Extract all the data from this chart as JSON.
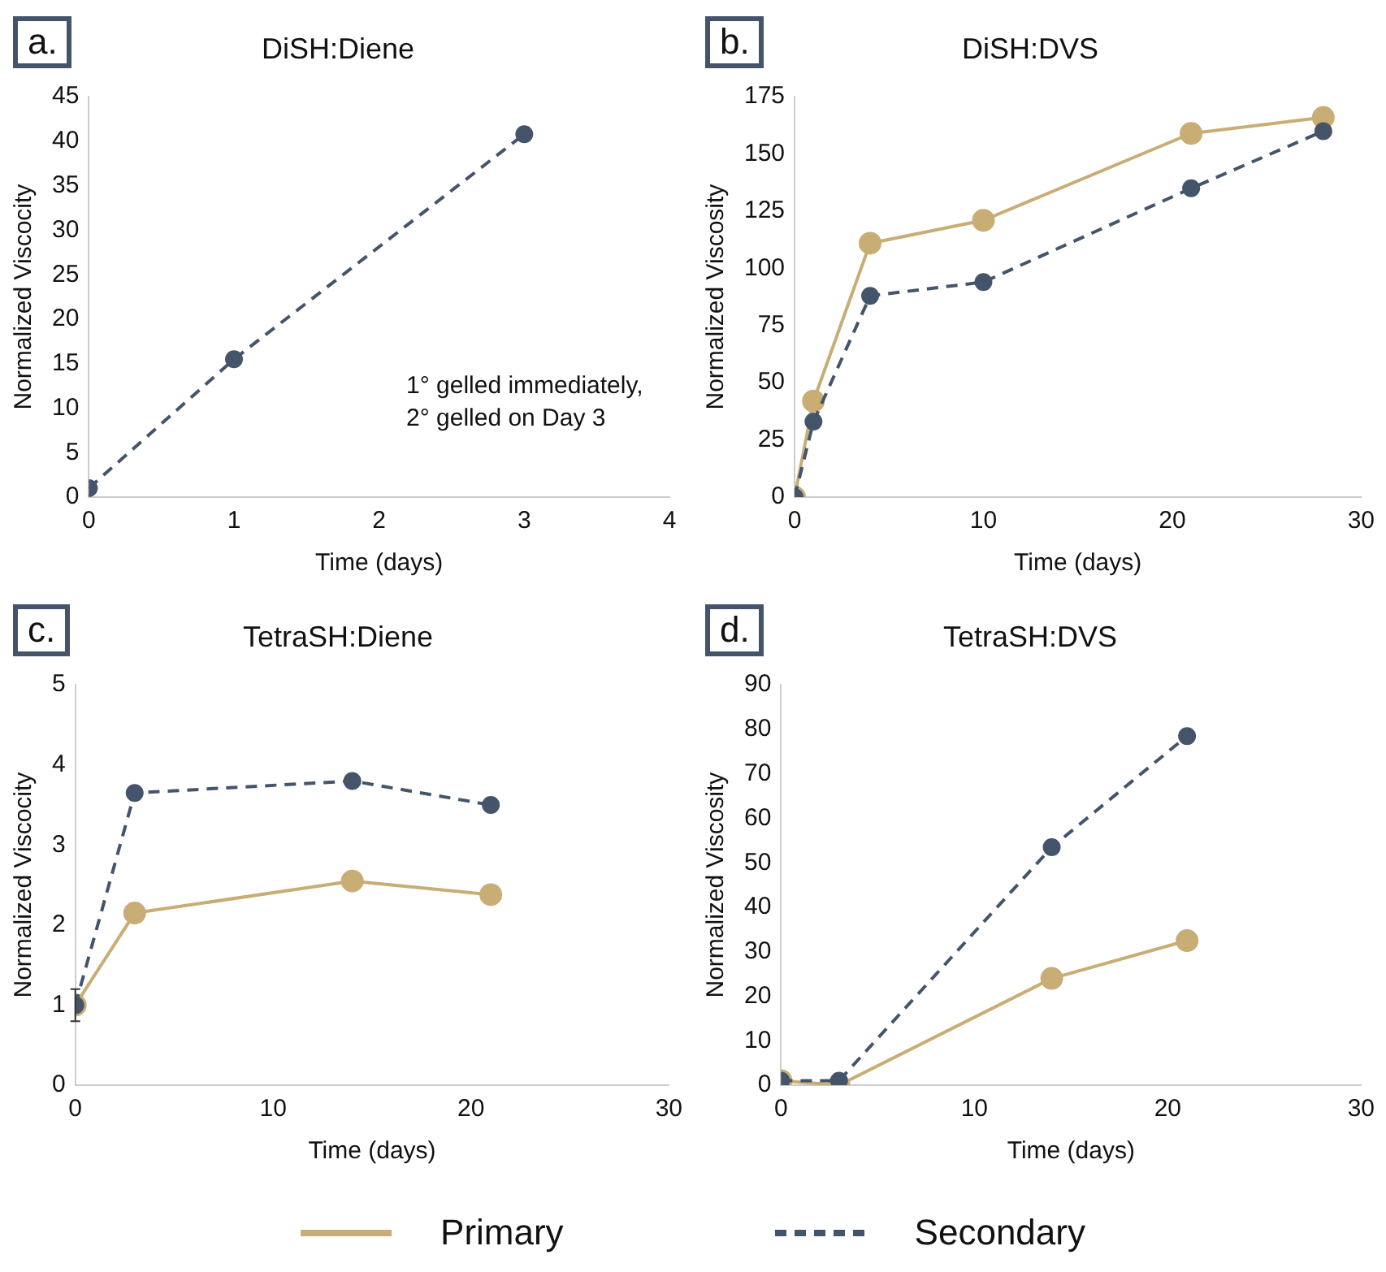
{
  "chart_data": [
    {
      "type": "line",
      "title": "DiSH:Diene",
      "xlabel": "Time (days)",
      "ylabel": "Normalized Viscocity",
      "annotations": [
        "a.",
        "1° gelled immediately,",
        "2° gelled on Day 3"
      ],
      "x": [
        0,
        1,
        3
      ],
      "xlim": [
        0,
        4
      ],
      "xticks": [
        0,
        1,
        2,
        3,
        4
      ],
      "ylim": [
        0,
        45
      ],
      "yticks": [
        0,
        5,
        10,
        15,
        20,
        25,
        30,
        35,
        40,
        45
      ],
      "grid": false,
      "marker": "circle",
      "series": [
        {
          "color": "#44546a",
          "line_style": "dashed",
          "values": [
            1,
            15.5,
            40.8
          ]
        }
      ]
    },
    {
      "type": "line",
      "title": "DiSH:DVS",
      "xlabel": "Time (days)",
      "ylabel": "Normalized Viscosity",
      "annotations": [
        "b."
      ],
      "x": [
        0,
        1,
        4,
        10,
        21,
        28
      ],
      "xlim": [
        0,
        30
      ],
      "xticks": [
        0,
        10,
        20,
        30
      ],
      "ylim": [
        0,
        175
      ],
      "yticks": [
        0,
        25,
        50,
        75,
        100,
        125,
        150,
        175
      ],
      "grid": false,
      "legend": "bottom",
      "marker": "circle",
      "series": [
        {
          "name": "Primary",
          "color": "#c8ad74",
          "line_style": "solid",
          "values": [
            0,
            42,
            111,
            121,
            159,
            166
          ]
        },
        {
          "name": "Secondary",
          "color": "#44546a",
          "line_style": "dashed",
          "values": [
            0,
            33,
            88,
            94,
            135,
            160
          ]
        }
      ]
    },
    {
      "type": "line",
      "title": "TetraSH:Diene",
      "xlabel": "Time (days)",
      "ylabel": "Normalized Viscocity",
      "annotations": [
        "c."
      ],
      "x": [
        0,
        3,
        14,
        21
      ],
      "xlim": [
        0,
        30
      ],
      "xticks": [
        0,
        10,
        20,
        30
      ],
      "ylim": [
        0,
        5
      ],
      "yticks": [
        0,
        1,
        2,
        3,
        4,
        5
      ],
      "grid": false,
      "marker": "circle",
      "series": [
        {
          "color": "#c8ad74",
          "line_style": "solid",
          "values": [
            1,
            2.15,
            2.55,
            2.38
          ]
        },
        {
          "color": "#44546a",
          "line_style": "dashed",
          "values": [
            1,
            3.65,
            3.8,
            3.5
          ],
          "errors": [
            0.2,
            null,
            null,
            null
          ]
        }
      ]
    },
    {
      "type": "line",
      "title": "TetraSH:DVS",
      "xlabel": "Time (days)",
      "ylabel": "Normalized Viscosity",
      "annotations": [
        "d."
      ],
      "x": [
        0,
        3,
        14,
        21
      ],
      "xlim": [
        0,
        30
      ],
      "xticks": [
        0,
        10,
        20,
        30
      ],
      "ylim": [
        0,
        90
      ],
      "yticks": [
        0,
        10,
        20,
        30,
        40,
        50,
        60,
        70,
        80,
        90
      ],
      "grid": false,
      "marker": "circle",
      "series": [
        {
          "color": "#c8ad74",
          "line_style": "solid",
          "values": [
            1,
            0,
            24,
            32.5
          ]
        },
        {
          "color": "#44546a",
          "line_style": "dashed",
          "values": [
            1,
            1,
            53.5,
            78.5
          ]
        }
      ]
    }
  ]
}
